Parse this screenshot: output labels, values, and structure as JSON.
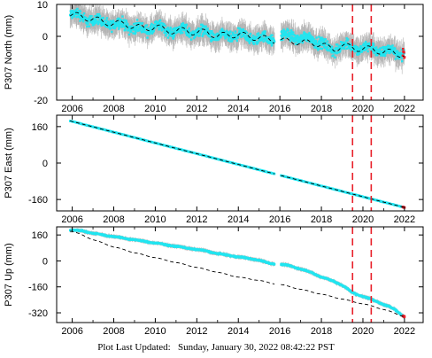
{
  "footer": {
    "label": "Plot Last Updated:",
    "value": "Sunday, January 30, 2022 08:42:22 PST"
  },
  "style": {
    "data_color": "#22e5f0",
    "errorbar_color": "#b4b4b4",
    "model_color": "#000000",
    "event_line_color": "#e8202a",
    "recent_point_color": "#e8202a"
  },
  "chart_data": [
    {
      "type": "scatter",
      "station": "P307",
      "ylabel": "P307 North (mm)",
      "xlim": [
        2005.25,
        2022.9
      ],
      "ylim": [
        -20,
        10
      ],
      "xticks": [
        2006,
        2008,
        2010,
        2012,
        2014,
        2016,
        2018,
        2020,
        2022
      ],
      "yticks": [
        -20,
        -10,
        0,
        10
      ],
      "grid": false,
      "data_gap": [
        2015.75,
        2016.05
      ],
      "event_lines": [
        2019.5,
        2020.4
      ],
      "series": [
        {
          "kind": "observed",
          "x": [
            2005.9,
            2006.5,
            2007,
            2007.5,
            2008,
            2008.5,
            2009,
            2009.5,
            2010,
            2010.5,
            2011,
            2011.5,
            2012,
            2012.5,
            2013,
            2013.5,
            2014,
            2014.5,
            2015,
            2015.5,
            2016.2,
            2016.6,
            2017,
            2017.5,
            2018,
            2018.3,
            2018.6,
            2019,
            2019.5,
            2020,
            2020.5,
            2021,
            2021.5,
            2022
          ],
          "y": [
            7,
            6,
            5,
            4.5,
            3.5,
            4,
            2.5,
            2,
            3,
            2,
            1.5,
            2,
            1,
            1.5,
            -0.5,
            0,
            0.5,
            -0.5,
            -0.5,
            -1,
            0,
            0.5,
            -1,
            -0.5,
            -2,
            -4,
            -4.5,
            -2.5,
            -3.5,
            -4,
            -3.5,
            -5,
            -4.5,
            -5.5
          ],
          "scatter_mm": 2.5,
          "errorbar_mm": 3
        },
        {
          "kind": "model",
          "x": [
            2005.9,
            2006.5,
            2007,
            2007.5,
            2008,
            2008.5,
            2009,
            2009.5,
            2010,
            2010.5,
            2011,
            2011.5,
            2012,
            2012.5,
            2013,
            2013.5,
            2014,
            2014.5,
            2015,
            2015.5,
            2016.2,
            2016.6,
            2017,
            2017.5,
            2018,
            2018.3,
            2018.6,
            2019,
            2019.5,
            2020,
            2020.5,
            2021,
            2021.5,
            2022
          ],
          "y": [
            7,
            6,
            5.5,
            4.5,
            4,
            4,
            3,
            2.5,
            3,
            2,
            1.5,
            2,
            1,
            1.5,
            0,
            0.5,
            0.5,
            0,
            -0.5,
            -1,
            -1.5,
            -1.5,
            -2,
            -2,
            -2.5,
            -3.5,
            -4,
            -3,
            -3.5,
            -4,
            -4,
            -5,
            -5,
            -6
          ],
          "seasonal_amp_mm": 1
        }
      ]
    },
    {
      "type": "scatter",
      "station": "P307",
      "ylabel": "P307 East (mm)",
      "xlim": [
        2005.25,
        2022.9
      ],
      "ylim": [
        -210,
        210
      ],
      "xticks": [
        2006,
        2008,
        2010,
        2012,
        2014,
        2016,
        2018,
        2020,
        2022
      ],
      "yticks": [
        -160,
        0,
        160
      ],
      "grid": false,
      "data_gap": [
        2015.75,
        2016.05
      ],
      "event_lines": [
        2019.5,
        2020.4
      ],
      "series": [
        {
          "kind": "observed",
          "x": [
            2005.9,
            2022
          ],
          "y": [
            185,
            -195
          ],
          "scatter_mm": 1.5,
          "errorbar_mm": 2
        },
        {
          "kind": "model",
          "x": [
            2005.9,
            2022
          ],
          "y": [
            185,
            -195
          ],
          "seasonal_amp_mm": 0
        }
      ]
    },
    {
      "type": "scatter",
      "station": "P307",
      "ylabel": "P307 Up (mm)",
      "xlim": [
        2005.25,
        2022.9
      ],
      "ylim": [
        -380,
        210
      ],
      "xticks": [
        2006,
        2008,
        2010,
        2012,
        2014,
        2016,
        2018,
        2020,
        2022
      ],
      "yticks": [
        -320,
        -160,
        0,
        160
      ],
      "grid": false,
      "data_gap": [
        2015.75,
        2016.05
      ],
      "event_lines": [
        2019.5,
        2020.4
      ],
      "series": [
        {
          "kind": "observed",
          "x": [
            2005.9,
            2006.5,
            2007,
            2007.5,
            2008,
            2008.5,
            2009,
            2009.5,
            2010,
            2010.5,
            2011,
            2011.5,
            2012,
            2012.5,
            2013,
            2013.5,
            2014,
            2014.5,
            2015,
            2015.5,
            2016.2,
            2016.5,
            2017,
            2017.5,
            2018,
            2018.5,
            2019,
            2019.5,
            2020,
            2020.5,
            2021,
            2021.5,
            2022
          ],
          "y": [
            190,
            185,
            170,
            160,
            150,
            140,
            130,
            120,
            110,
            100,
            90,
            80,
            70,
            60,
            45,
            35,
            25,
            15,
            5,
            -15,
            -25,
            -30,
            -50,
            -70,
            -100,
            -120,
            -150,
            -195,
            -220,
            -240,
            -270,
            -295,
            -345
          ],
          "scatter_mm": 6,
          "errorbar_mm": 10
        },
        {
          "kind": "model",
          "x": [
            2005.9,
            2006.5,
            2007,
            2007.5,
            2008,
            2008.5,
            2009,
            2009.5,
            2010,
            2010.5,
            2011,
            2011.5,
            2012,
            2012.5,
            2013,
            2013.5,
            2014,
            2014.5,
            2015,
            2015.5,
            2016.2,
            2016.5,
            2017,
            2017.5,
            2018,
            2018.5,
            2019,
            2019.5,
            2020,
            2020.5,
            2021,
            2021.5,
            2022
          ],
          "y": [
            185,
            160,
            130,
            110,
            85,
            70,
            50,
            35,
            20,
            5,
            -10,
            -25,
            -40,
            -55,
            -70,
            -85,
            -100,
            -110,
            -120,
            -135,
            -150,
            -160,
            -175,
            -190,
            -205,
            -220,
            -235,
            -250,
            -265,
            -280,
            -300,
            -320,
            -345
          ],
          "seasonal_amp_mm": 2
        }
      ]
    }
  ]
}
